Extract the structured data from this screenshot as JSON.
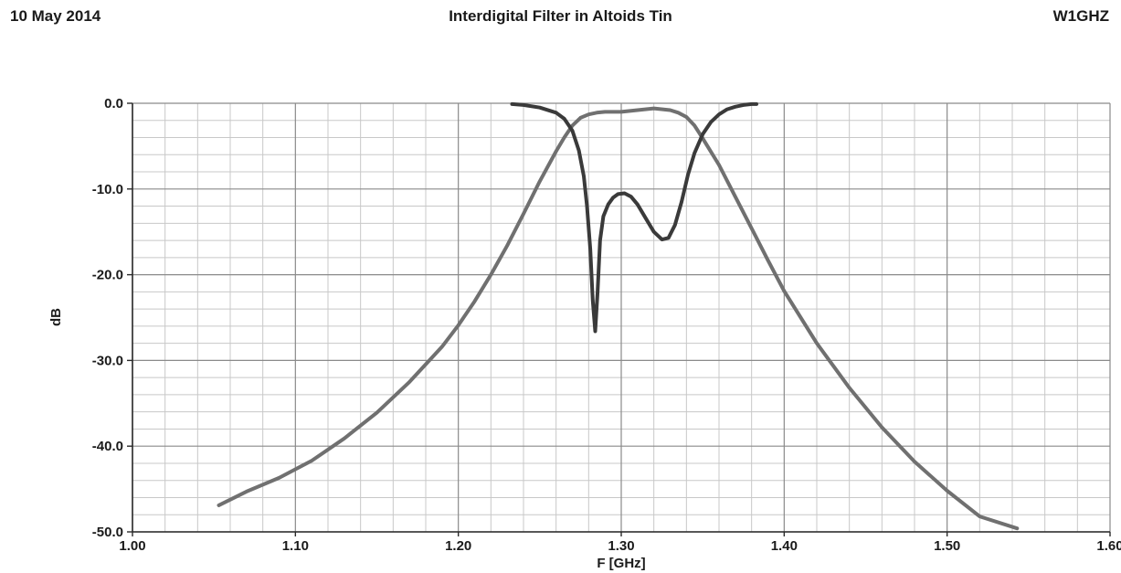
{
  "header": {
    "date": "10 May 2014",
    "title": "Interdigital Filter in Altoids Tin",
    "callsign": "W1GHZ"
  },
  "chart_data": {
    "type": "line",
    "title": "Interdigital Filter in Altoids Tin",
    "xlabel": "F [GHz]",
    "ylabel": "dB",
    "xlim": [
      1.0,
      1.6
    ],
    "ylim": [
      -50.0,
      0.0
    ],
    "x_ticks": [
      "1.00",
      "1.10",
      "1.20",
      "1.30",
      "1.40",
      "1.50",
      "1.60"
    ],
    "y_ticks": [
      "0.0",
      "-10.0",
      "-20.0",
      "-30.0",
      "-40.0",
      "-50.0"
    ],
    "x_tick_values": [
      1.0,
      1.1,
      1.2,
      1.3,
      1.4,
      1.5,
      1.6
    ],
    "y_tick_values": [
      0.0,
      -10.0,
      -20.0,
      -30.0,
      -40.0,
      -50.0
    ],
    "grid": true,
    "series": [
      {
        "color": "#707070",
        "x": [
          1.053,
          1.07,
          1.09,
          1.11,
          1.13,
          1.15,
          1.17,
          1.19,
          1.2,
          1.21,
          1.22,
          1.23,
          1.24,
          1.25,
          1.26,
          1.265,
          1.27,
          1.275,
          1.28,
          1.285,
          1.29,
          1.3,
          1.31,
          1.32,
          1.33,
          1.335,
          1.34,
          1.345,
          1.35,
          1.36,
          1.37,
          1.38,
          1.39,
          1.4,
          1.42,
          1.44,
          1.46,
          1.48,
          1.5,
          1.52,
          1.543
        ],
        "values": [
          -46.9,
          -45.3,
          -43.7,
          -41.7,
          -39.1,
          -36.1,
          -32.5,
          -28.4,
          -25.9,
          -23.1,
          -20.0,
          -16.6,
          -12.9,
          -9.1,
          -5.6,
          -4.0,
          -2.6,
          -1.7,
          -1.3,
          -1.1,
          -1.0,
          -1.0,
          -0.8,
          -0.6,
          -0.8,
          -1.1,
          -1.6,
          -2.6,
          -4.1,
          -7.2,
          -10.9,
          -14.6,
          -18.3,
          -21.9,
          -28.0,
          -33.2,
          -37.8,
          -41.8,
          -45.2,
          -48.2,
          -49.6
        ]
      },
      {
        "color": "#3a3a3a",
        "x": [
          1.233,
          1.24,
          1.25,
          1.26,
          1.265,
          1.27,
          1.274,
          1.277,
          1.279,
          1.281,
          1.2825,
          1.284,
          1.2855,
          1.287,
          1.289,
          1.292,
          1.295,
          1.298,
          1.302,
          1.306,
          1.31,
          1.315,
          1.32,
          1.325,
          1.329,
          1.333,
          1.337,
          1.341,
          1.345,
          1.35,
          1.355,
          1.36,
          1.365,
          1.37,
          1.375,
          1.38,
          1.383
        ],
        "values": [
          -0.1,
          -0.2,
          -0.5,
          -1.1,
          -1.8,
          -3.2,
          -5.5,
          -8.5,
          -12.0,
          -17.0,
          -23.0,
          -26.6,
          -22.0,
          -16.0,
          -13.2,
          -11.8,
          -11.0,
          -10.6,
          -10.5,
          -10.9,
          -11.8,
          -13.4,
          -15.0,
          -15.9,
          -15.7,
          -14.2,
          -11.5,
          -8.3,
          -5.8,
          -3.6,
          -2.2,
          -1.3,
          -0.7,
          -0.4,
          -0.2,
          -0.1,
          -0.1
        ]
      }
    ]
  }
}
